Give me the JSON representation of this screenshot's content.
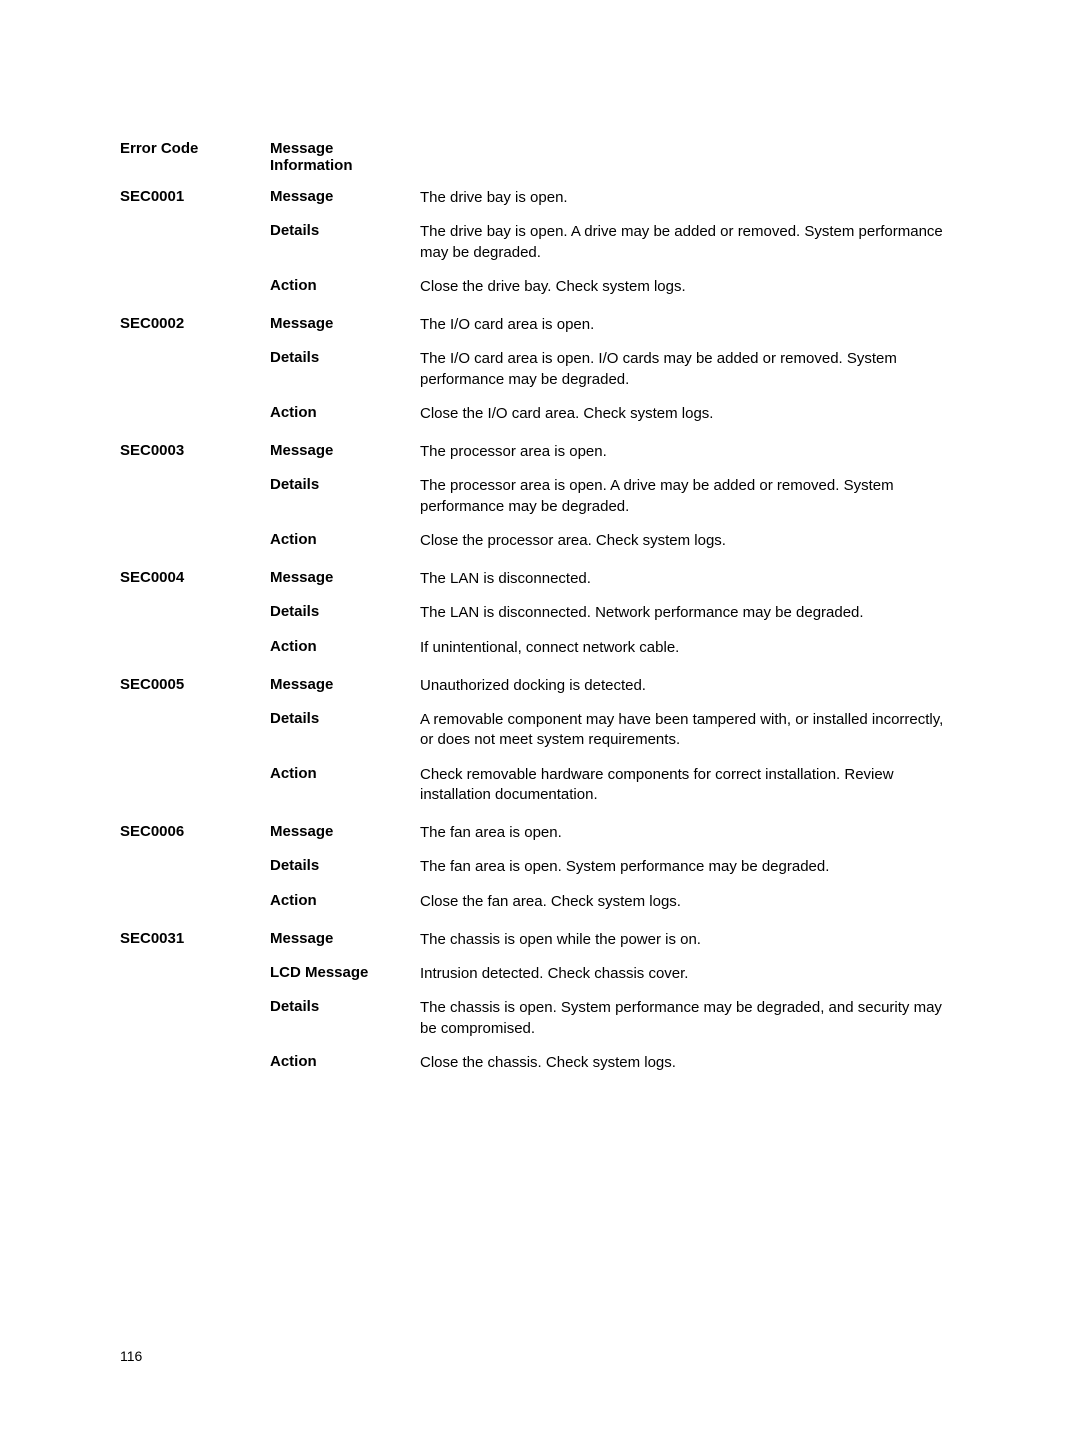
{
  "header": {
    "error_code_label": "Error Code",
    "message_info_label": "Message Information"
  },
  "labels": {
    "message": "Message",
    "details": "Details",
    "action": "Action",
    "lcd_message": "LCD Message"
  },
  "errors": [
    {
      "code": "SEC0001",
      "rows": [
        {
          "field": "message",
          "text": "The drive bay is open."
        },
        {
          "field": "details",
          "text": "The drive bay is open. A drive may be added or removed. System performance may be degraded."
        },
        {
          "field": "action",
          "text": "Close the drive bay. Check system logs."
        }
      ]
    },
    {
      "code": "SEC0002",
      "rows": [
        {
          "field": "message",
          "text": "The I/O card area is open."
        },
        {
          "field": "details",
          "text": "The I/O card area is open. I/O cards may be added or removed. System performance may be degraded."
        },
        {
          "field": "action",
          "text": "Close the I/O card area. Check system logs."
        }
      ]
    },
    {
      "code": "SEC0003",
      "rows": [
        {
          "field": "message",
          "text": "The processor area is open."
        },
        {
          "field": "details",
          "text": "The processor area is open. A drive may be added or removed. System performance may be degraded."
        },
        {
          "field": "action",
          "text": "Close the processor area. Check system logs."
        }
      ]
    },
    {
      "code": "SEC0004",
      "rows": [
        {
          "field": "message",
          "text": "The LAN is disconnected."
        },
        {
          "field": "details",
          "text": "The LAN is disconnected. Network performance may be degraded."
        },
        {
          "field": "action",
          "text": "If unintentional, connect network cable."
        }
      ]
    },
    {
      "code": "SEC0005",
      "rows": [
        {
          "field": "message",
          "text": "Unauthorized docking is detected."
        },
        {
          "field": "details",
          "text": "A removable component may have been tampered with, or installed incorrectly, or does not meet system requirements."
        },
        {
          "field": "action",
          "text": "Check removable hardware components for correct installation. Review installation documentation."
        }
      ]
    },
    {
      "code": "SEC0006",
      "rows": [
        {
          "field": "message",
          "text": "The fan area is open."
        },
        {
          "field": "details",
          "text": "The fan area is open. System performance may be degraded."
        },
        {
          "field": "action",
          "text": "Close the fan area. Check system logs."
        }
      ]
    },
    {
      "code": "SEC0031",
      "rows": [
        {
          "field": "message",
          "text": "The chassis is open while the power is on."
        },
        {
          "field": "lcd_message",
          "text": "Intrusion detected. Check chassis cover."
        },
        {
          "field": "details",
          "text": "The chassis is open. System performance may be degraded, and security may be compromised."
        },
        {
          "field": "action",
          "text": "Close the chassis. Check system logs."
        }
      ]
    }
  ],
  "page_number": "116"
}
